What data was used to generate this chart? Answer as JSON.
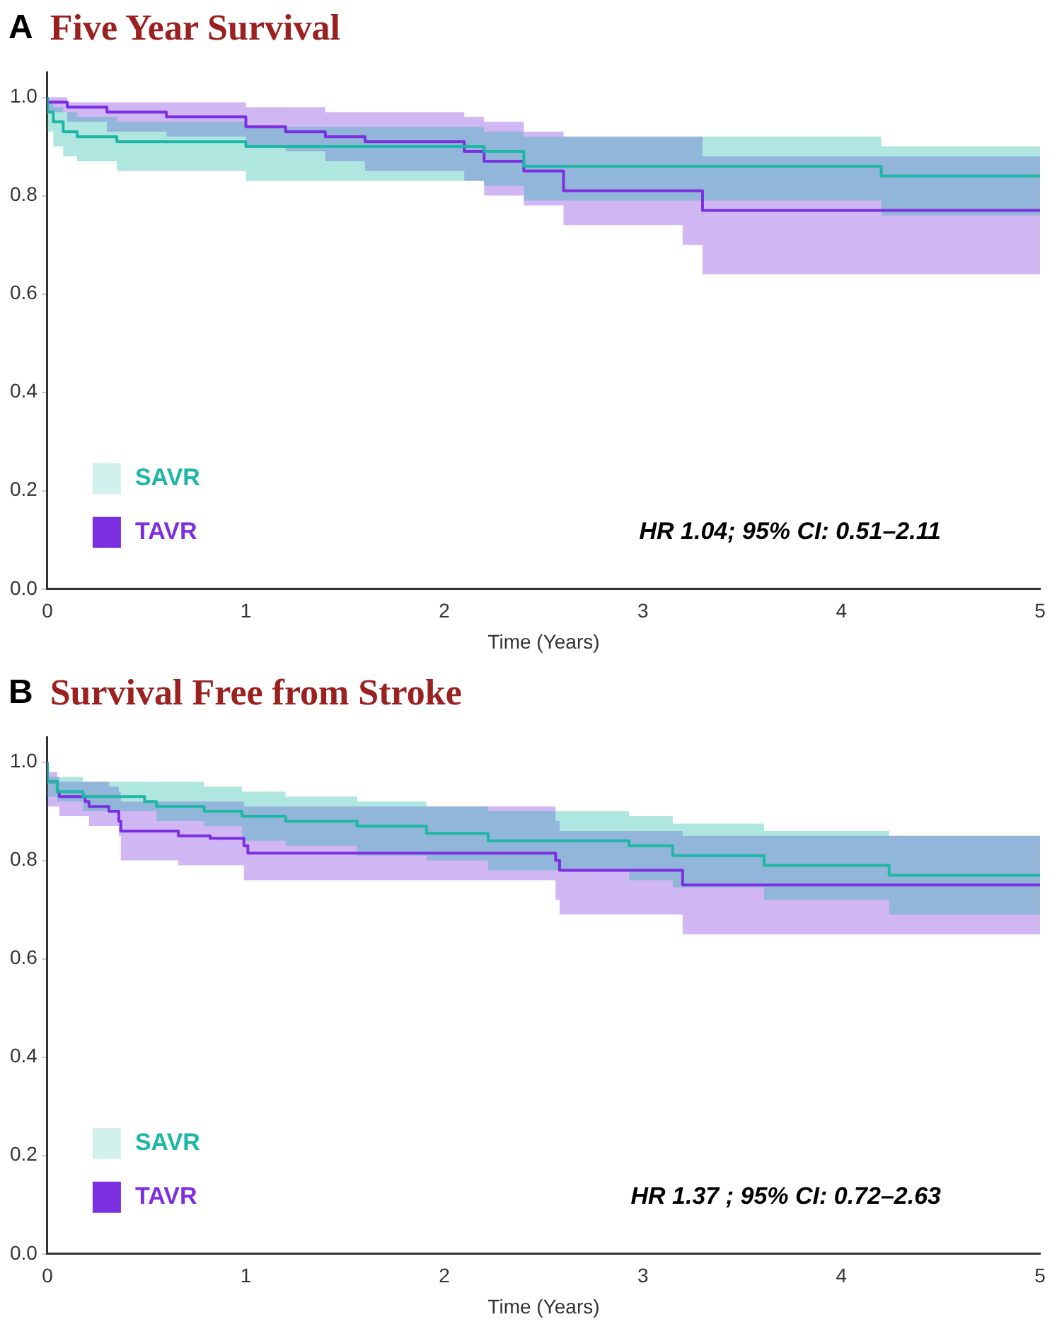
{
  "chart_data": [
    {
      "type": "step",
      "title": "Five Year Survival",
      "xlabel": "Time (Years)",
      "annotations": [
        "A",
        "HR 1.04; 95% CI: 0.51–2.11"
      ],
      "legend": "bottom left",
      "xlim": [
        0,
        5
      ],
      "ylim": [
        0,
        1.05
      ],
      "xticks": [
        0,
        1,
        2,
        3,
        4,
        5
      ],
      "yticks": [
        {
          "value": 0,
          "label": "0.0"
        },
        {
          "value": 0.2,
          "label": "0.2"
        },
        {
          "value": 0.4,
          "label": "0.4"
        },
        {
          "value": 0.6,
          "label": "0.6"
        },
        {
          "value": 0.8,
          "label": "0.8"
        },
        {
          "value": 1,
          "label": "1.0"
        }
      ],
      "series": [
        {
          "name": "SAVR",
          "color": "#1db7a5",
          "x": [
            0,
            0.03,
            0.08,
            0.15,
            0.35,
            1.0,
            2.2,
            2.4,
            4.2,
            4.8,
            5
          ],
          "values": [
            1.0,
            0.97,
            0.95,
            0.93,
            0.92,
            0.91,
            0.9,
            0.89,
            0.86,
            0.84,
            0.84
          ],
          "lower": [
            1.0,
            0.93,
            0.9,
            0.88,
            0.87,
            0.85,
            0.83,
            0.82,
            0.79,
            0.76,
            0.76
          ],
          "upper": [
            1.0,
            0.99,
            0.98,
            0.97,
            0.96,
            0.95,
            0.94,
            0.93,
            0.92,
            0.9,
            0.9
          ]
        },
        {
          "name": "TAVR",
          "color": "#7b2fe0",
          "x": [
            0,
            0.1,
            0.3,
            0.6,
            1.0,
            1.2,
            1.4,
            1.6,
            2.1,
            2.2,
            2.4,
            2.6,
            3.2,
            3.3,
            4.8,
            5
          ],
          "values": [
            1.0,
            0.99,
            0.98,
            0.97,
            0.96,
            0.94,
            0.93,
            0.92,
            0.91,
            0.89,
            0.87,
            0.85,
            0.81,
            0.81,
            0.77,
            0.77
          ],
          "lower": [
            1.0,
            0.97,
            0.95,
            0.93,
            0.92,
            0.9,
            0.89,
            0.87,
            0.85,
            0.83,
            0.8,
            0.78,
            0.74,
            0.7,
            0.64,
            0.64
          ],
          "upper": [
            1.0,
            1.0,
            0.99,
            0.99,
            0.99,
            0.98,
            0.98,
            0.97,
            0.97,
            0.96,
            0.95,
            0.93,
            0.92,
            0.92,
            0.88,
            0.88
          ]
        }
      ]
    },
    {
      "type": "step",
      "title": "Survival Free from Stroke",
      "xlabel": "Time (Years)",
      "annotations": [
        "B",
        "HR 1.37 ; 95% CI: 0.72–2.63"
      ],
      "legend": "bottom left",
      "xlim": [
        0,
        5
      ],
      "ylim": [
        0,
        1.05
      ],
      "xticks": [
        0,
        1,
        2,
        3,
        4,
        5
      ],
      "yticks": [
        {
          "value": 0,
          "label": "0.0"
        },
        {
          "value": 0.2,
          "label": "0.2"
        },
        {
          "value": 0.4,
          "label": "0.4"
        },
        {
          "value": 0.6,
          "label": "0.6"
        },
        {
          "value": 0.8,
          "label": "0.8"
        },
        {
          "value": 1,
          "label": "1.0"
        }
      ],
      "series": [
        {
          "name": "SAVR",
          "color": "#1db7a5",
          "x": [
            0,
            0.05,
            0.18,
            0.49,
            0.55,
            0.79,
            0.98,
            1.2,
            1.56,
            1.91,
            2.22,
            2.93,
            3.15,
            3.61,
            4.24,
            4.57,
            5
          ],
          "values": [
            1.0,
            0.96,
            0.94,
            0.93,
            0.92,
            0.91,
            0.9,
            0.89,
            0.88,
            0.87,
            0.855,
            0.84,
            0.83,
            0.81,
            0.79,
            0.77,
            0.77
          ],
          "lower": [
            1.0,
            0.93,
            0.92,
            0.9,
            0.9,
            0.88,
            0.87,
            0.84,
            0.83,
            0.81,
            0.8,
            0.78,
            0.76,
            0.745,
            0.72,
            0.69,
            0.69
          ],
          "upper": [
            1.0,
            0.97,
            0.97,
            0.96,
            0.96,
            0.96,
            0.95,
            0.94,
            0.93,
            0.92,
            0.91,
            0.9,
            0.89,
            0.875,
            0.86,
            0.85,
            0.85
          ]
        },
        {
          "name": "TAVR",
          "color": "#7b2fe0",
          "x": [
            0,
            0.05,
            0.06,
            0.19,
            0.21,
            0.31,
            0.36,
            0.37,
            0.66,
            0.82,
            0.99,
            1.01,
            2.56,
            2.58,
            3.2,
            3.87,
            5
          ],
          "values": [
            1.0,
            0.96,
            0.94,
            0.93,
            0.92,
            0.91,
            0.9,
            0.88,
            0.86,
            0.85,
            0.845,
            0.83,
            0.815,
            0.8,
            0.78,
            0.75,
            0.75
          ],
          "lower": [
            1.0,
            0.91,
            0.91,
            0.89,
            0.89,
            0.87,
            0.87,
            0.85,
            0.8,
            0.79,
            0.79,
            0.76,
            0.76,
            0.72,
            0.69,
            0.65,
            0.65
          ],
          "upper": [
            1.0,
            0.98,
            0.97,
            0.96,
            0.96,
            0.96,
            0.95,
            0.94,
            0.92,
            0.92,
            0.92,
            0.91,
            0.91,
            0.88,
            0.86,
            0.85,
            0.85
          ]
        }
      ]
    }
  ]
}
